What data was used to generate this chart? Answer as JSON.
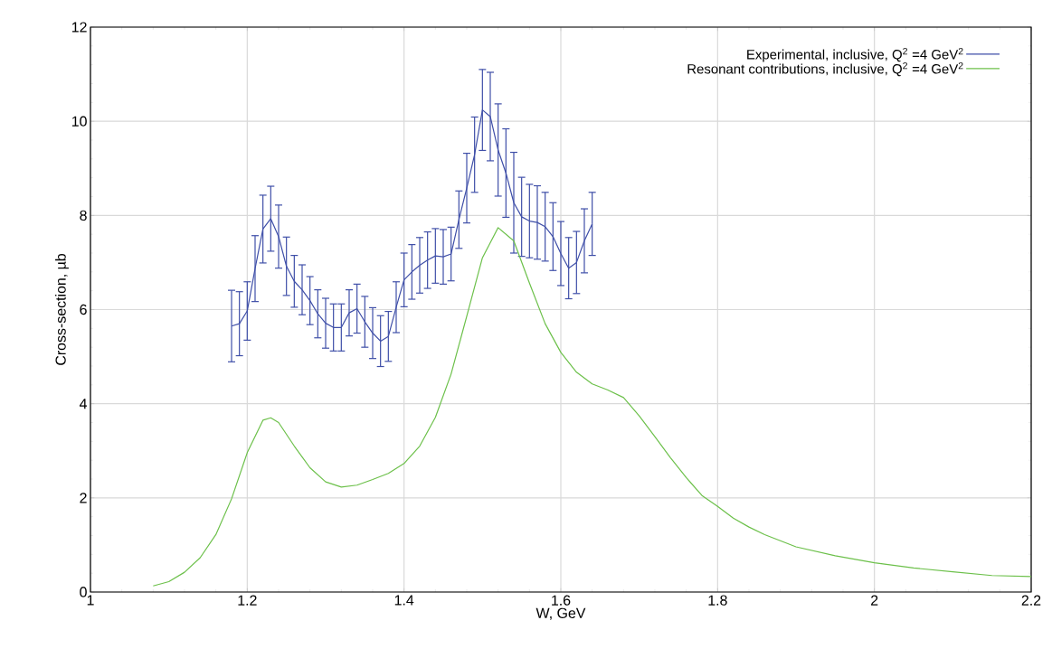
{
  "chart_data": {
    "type": "line",
    "xlabel": "W, GeV",
    "ylabel": "Cross-section, µb",
    "xlim": [
      1,
      2.2
    ],
    "ylim": [
      0,
      12
    ],
    "xticks": [
      1,
      1.2,
      1.4,
      1.6,
      1.8,
      2,
      2.2
    ],
    "yticks": [
      0,
      2,
      4,
      6,
      8,
      10,
      12
    ],
    "grid": true,
    "legend": "top right",
    "series": [
      {
        "name": "Experimental, inclusive, Q$^{2}$ =4 GeV$^{2}$",
        "color": "#3f4fa8",
        "x": [
          1.18,
          1.19,
          1.2,
          1.21,
          1.22,
          1.23,
          1.24,
          1.25,
          1.26,
          1.27,
          1.28,
          1.29,
          1.3,
          1.31,
          1.32,
          1.33,
          1.34,
          1.35,
          1.36,
          1.37,
          1.38,
          1.39,
          1.4,
          1.41,
          1.42,
          1.43,
          1.44,
          1.45,
          1.46,
          1.47,
          1.48,
          1.49,
          1.5,
          1.51,
          1.52,
          1.53,
          1.54,
          1.55,
          1.56,
          1.57,
          1.58,
          1.59,
          1.6,
          1.61,
          1.62,
          1.63,
          1.64
        ],
        "values": [
          5.65,
          5.7,
          5.97,
          6.87,
          7.71,
          7.93,
          7.55,
          6.92,
          6.6,
          6.42,
          6.19,
          5.91,
          5.71,
          5.62,
          5.62,
          5.93,
          6.02,
          5.74,
          5.5,
          5.33,
          5.43,
          6.05,
          6.63,
          6.8,
          6.94,
          7.05,
          7.14,
          7.12,
          7.18,
          7.91,
          8.58,
          9.29,
          10.24,
          10.1,
          9.39,
          8.9,
          8.27,
          7.97,
          7.88,
          7.85,
          7.76,
          7.55,
          7.19,
          6.88,
          7.0,
          7.46,
          7.82
        ],
        "errors": [
          0.76,
          0.68,
          0.62,
          0.7,
          0.72,
          0.69,
          0.67,
          0.62,
          0.55,
          0.53,
          0.51,
          0.51,
          0.53,
          0.5,
          0.5,
          0.49,
          0.52,
          0.54,
          0.54,
          0.54,
          0.53,
          0.54,
          0.57,
          0.58,
          0.59,
          0.6,
          0.58,
          0.58,
          0.57,
          0.61,
          0.74,
          0.8,
          0.86,
          0.94,
          0.98,
          0.94,
          1.07,
          0.84,
          0.78,
          0.78,
          0.73,
          0.72,
          0.68,
          0.65,
          0.66,
          0.68,
          0.67
        ]
      },
      {
        "name": "Resonant contributions, inclusive, Q$^{2}$ =4 GeV$^{2}$",
        "color": "#6cc04a",
        "x": [
          1.08,
          1.1,
          1.12,
          1.14,
          1.16,
          1.18,
          1.2,
          1.22,
          1.23,
          1.24,
          1.26,
          1.28,
          1.3,
          1.32,
          1.34,
          1.36,
          1.38,
          1.4,
          1.42,
          1.44,
          1.46,
          1.48,
          1.5,
          1.52,
          1.54,
          1.56,
          1.58,
          1.6,
          1.62,
          1.64,
          1.66,
          1.68,
          1.7,
          1.72,
          1.74,
          1.76,
          1.78,
          1.8,
          1.82,
          1.84,
          1.86,
          1.9,
          1.95,
          2,
          2.05,
          2.1,
          2.15,
          2.2
        ],
        "values": [
          0.13,
          0.22,
          0.42,
          0.73,
          1.22,
          1.98,
          2.96,
          3.65,
          3.7,
          3.6,
          3.1,
          2.64,
          2.34,
          2.23,
          2.27,
          2.39,
          2.52,
          2.73,
          3.1,
          3.71,
          4.63,
          5.86,
          7.1,
          7.74,
          7.46,
          6.56,
          5.7,
          5.09,
          4.67,
          4.42,
          4.29,
          4.13,
          3.74,
          3.3,
          2.85,
          2.43,
          2.05,
          1.82,
          1.57,
          1.38,
          1.22,
          0.96,
          0.77,
          0.62,
          0.51,
          0.43,
          0.35,
          0.33
        ]
      }
    ]
  }
}
